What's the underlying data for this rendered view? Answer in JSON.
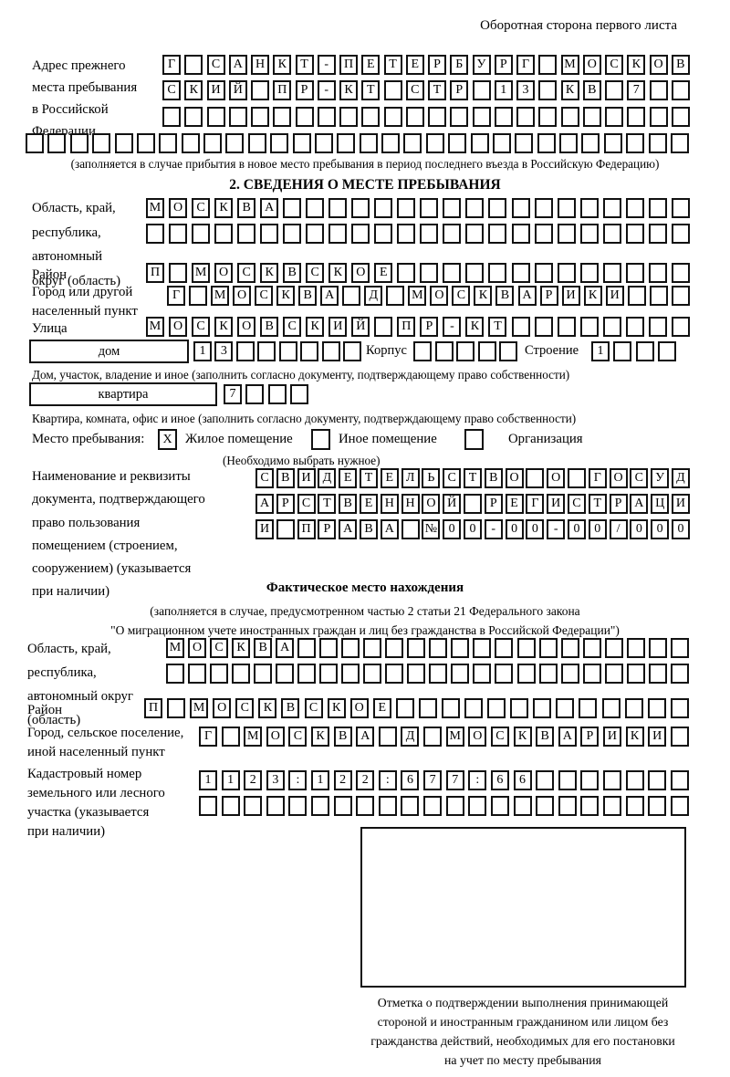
{
  "header": {
    "back_note": "Оборотная сторона первого листа"
  },
  "prev_address": {
    "label": "Адрес прежнего\nместа пребывания\nв Российской\nФедерации",
    "row1": "Г САНКТ-ПЕТЕРБУРГ МОСКОВ",
    "row2": "СКИЙ ПР-КТ СТР 13 КВ 7",
    "row3": "",
    "row4": "",
    "note": "(заполняется в случае прибытия в новое место пребывания в период последнего въезда в Российскую Федерацию)"
  },
  "section2": {
    "title": "2. СВЕДЕНИЯ О МЕСТЕ ПРЕБЫВАНИЯ",
    "region": {
      "label": "Область, край,\nреспублика,\nавтономный\nокруг (область)",
      "row1": "МОСКВА",
      "row2": ""
    },
    "district": {
      "label": "Район",
      "row": "П МОСКВСКОЕ"
    },
    "city": {
      "label": "Город или другой\nнаселенный пункт",
      "row": "Г МОСКВА Д МОСКВАРИКИ"
    },
    "street": {
      "label": "Улица",
      "row": "МОСКОВСКИЙ ПР-КТ"
    },
    "house": {
      "box_label": "дом",
      "cells": "13",
      "korpus_label": "Корпус",
      "korpus_cells": "",
      "stroenie_label": "Строение",
      "stroenie_cells": "1",
      "note": "Дом, участок, владение и иное (заполнить согласно документу, подтверждающему право собственности)"
    },
    "apartment": {
      "box_label": "квартира",
      "cells": "7",
      "note": "Квартира, комната, офис и иное (заполнить согласно документу, подтверждающему право собственности)"
    },
    "stay_type": {
      "label": "Место пребывания:",
      "options": [
        {
          "label": "Жилое помещение",
          "mark": "X"
        },
        {
          "label": "Иное помещение",
          "mark": ""
        },
        {
          "label": "Организация",
          "mark": ""
        }
      ],
      "note": "(Необходимо выбрать нужное)"
    },
    "doc": {
      "label": "Наименование и реквизиты\nдокумента, подтверждающего\nправо пользования\nпомещением (строением,\nсооружением) (указывается\nпри наличии)",
      "row1": "СВИДЕТЕЛЬСТВО О ГОСУД",
      "row2": "АРСТВЕННОЙ РЕГИСТРАЦИ",
      "row3": "И ПРАВА №00-00-00/000"
    }
  },
  "actual_location": {
    "title": "Фактическое место нахождения",
    "note": "(заполняется в случае, предусмотренном частью 2 статьи 21 Федерального закона\n\"О миграционном учете иностранных граждан и лиц без гражданства в Российской Федерации\")",
    "region": {
      "label": "Область, край,\nреспублика,\nавтономный округ\n(область)",
      "row1": "МОСКВА",
      "row2": ""
    },
    "district": {
      "label": "Район",
      "row": "П МОСКВСКОЕ"
    },
    "city": {
      "label": "Город, сельское поселение,\nиной населенный пункт",
      "row": "Г МОСКВА Д МОСКВАРИКИ"
    },
    "cadastre": {
      "label": "Кадастровый номер\nземельного или лесного\nучастка (указывается\nпри наличии)",
      "row1": "1123:122:677:66",
      "row2": ""
    },
    "stamp_caption": "Отметка о подтверждении выполнения принимающей\nстороной и иностранным гражданином или лицом без\nгражданства действий, необходимых для его постановки\nна учет по месту пребывания"
  }
}
